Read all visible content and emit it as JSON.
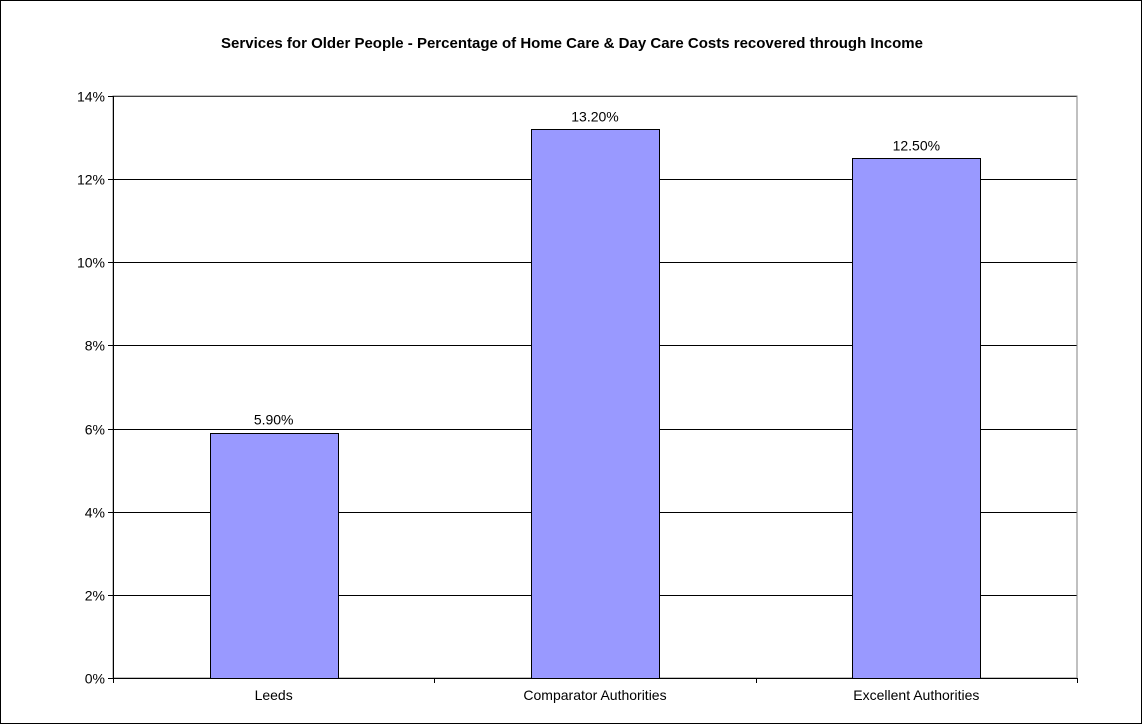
{
  "chart_data": {
    "type": "bar",
    "title": "Services for Older People - Percentage of Home Care & Day Care Costs recovered through Income",
    "xlabel": "",
    "ylabel": "",
    "categories": [
      "Leeds",
      "Comparator Authorities",
      "Excellent Authorities"
    ],
    "values": [
      5.9,
      13.2,
      12.5
    ],
    "data_labels": [
      "5.90%",
      "13.20%",
      "12.50%"
    ],
    "ylim": [
      0,
      14
    ],
    "y_ticks": [
      0,
      2,
      4,
      6,
      8,
      10,
      12,
      14
    ],
    "y_tick_labels": [
      "0%",
      "2%",
      "4%",
      "6%",
      "8%",
      "10%",
      "12%",
      "14%"
    ],
    "grid": true,
    "legend": "none",
    "bar_color": "#9999ff",
    "plot_border_color": "#808080"
  }
}
